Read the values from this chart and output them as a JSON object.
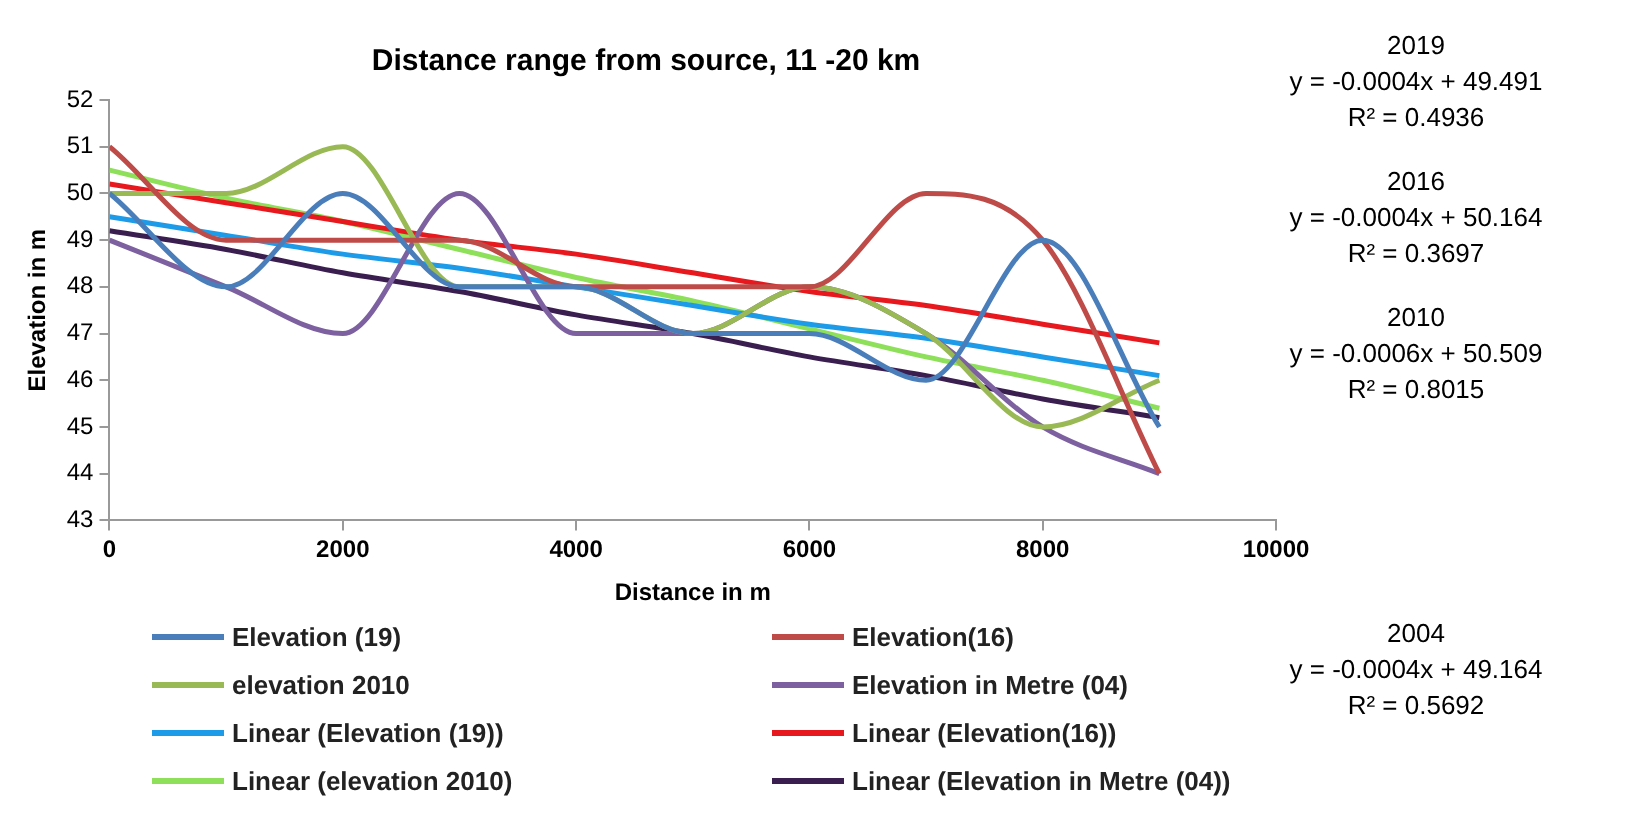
{
  "chart_data": {
    "type": "line",
    "title": "Distance range from source, 11 -20 km",
    "xlabel": "Distance in m",
    "ylabel": "Elevation in m",
    "x": [
      0,
      1000,
      2000,
      3000,
      4000,
      5000,
      6000,
      7000,
      8000,
      9000
    ],
    "series": [
      {
        "name": "Elevation (19)",
        "color": "#4a7ebb",
        "values": [
          50,
          48,
          50,
          48,
          48,
          47,
          47,
          46,
          49,
          45
        ]
      },
      {
        "name": "Elevation(16)",
        "color": "#be4b48",
        "values": [
          51,
          49,
          49,
          49,
          48,
          48,
          48,
          50,
          49,
          44
        ]
      },
      {
        "name": "elevation 2010",
        "color": "#98b954",
        "values": [
          50,
          50,
          51,
          48,
          48,
          47,
          48,
          47,
          45,
          46
        ]
      },
      {
        "name": "Elevation in Metre (04)",
        "color": "#7d60a0",
        "values": [
          49,
          48,
          47,
          50,
          47,
          47,
          48,
          47,
          45,
          44
        ]
      },
      {
        "name": "Linear (Elevation (19))",
        "color": "#1e9be8",
        "values": [
          49.5,
          49.1,
          48.7,
          48.4,
          48.0,
          47.6,
          47.2,
          46.9,
          46.5,
          46.1
        ]
      },
      {
        "name": "Linear (Elevation(16))",
        "color": "#e8191e",
        "values": [
          50.2,
          49.8,
          49.4,
          49.0,
          48.7,
          48.3,
          47.9,
          47.6,
          47.2,
          46.8
        ]
      },
      {
        "name": "Linear (elevation 2010)",
        "color": "#8ee05a",
        "values": [
          50.5,
          49.9,
          49.4,
          48.8,
          48.2,
          47.7,
          47.1,
          46.5,
          46.0,
          45.4
        ]
      },
      {
        "name": "Linear (Elevation in Metre (04))",
        "color": "#3b1e50",
        "values": [
          49.2,
          48.8,
          48.3,
          47.9,
          47.4,
          47.0,
          46.5,
          46.1,
          45.6,
          45.2
        ]
      }
    ],
    "xlim": [
      0,
      10000
    ],
    "xticks": [
      0,
      2000,
      4000,
      6000,
      8000,
      10000
    ],
    "ylim": [
      43,
      52
    ],
    "yticks": [
      43,
      44,
      45,
      46,
      47,
      48,
      49,
      50,
      51,
      52
    ],
    "grid": false,
    "legend": "bottom",
    "marker": "none",
    "line_style": "solid",
    "annotations": [
      "2019\ny = -0.0004x + 49.491\nR² = 0.4936",
      "2016\ny = -0.0004x + 50.164\nR² = 0.3697",
      "2010\ny = -0.0006x + 50.509\nR² = 0.8015",
      "2004\ny = -0.0004x + 49.164\nR² = 0.5692"
    ]
  }
}
